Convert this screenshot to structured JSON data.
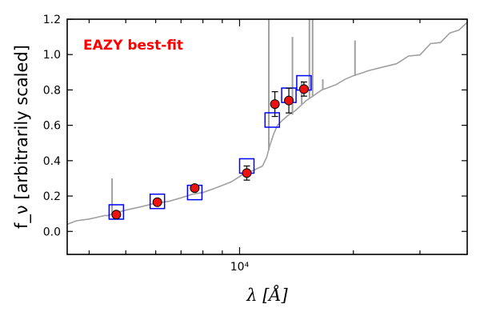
{
  "chart_data": {
    "type": "scatter",
    "annotation": "EAZY best-fit",
    "annotation_color": "#ff0000",
    "xlabel": "λ [Å]",
    "ylabel": "f_ν [arbitrarily scaled]",
    "x_scale": "log",
    "xlim": [
      3500,
      40000
    ],
    "ylim": [
      -0.13,
      1.2
    ],
    "x_tick_labels": [
      {
        "value": 10000,
        "label": "10⁴"
      }
    ],
    "y_ticks": [
      0.0,
      0.2,
      0.4,
      0.6,
      0.8,
      1.0,
      1.2
    ],
    "y_tick_labels": [
      "0.0",
      "0.2",
      "0.4",
      "0.6",
      "0.8",
      "1.0",
      "1.2"
    ],
    "grid": false,
    "colors": {
      "template": "#a0a0a0",
      "model_box": "#0000ff",
      "observed_fill": "#ee1111",
      "observed_edge": "#000000"
    },
    "template_spectrum": {
      "name": "EAZY best-fit",
      "x": [
        3500,
        3700,
        4000,
        4200,
        4400,
        4500,
        4600,
        4800,
        5000,
        5500,
        6000,
        6500,
        7000,
        7500,
        8000,
        8500,
        9000,
        9500,
        10000,
        10300,
        10500,
        11000,
        11500,
        11800,
        12000,
        12300,
        12600,
        13000,
        13500,
        14000,
        14500,
        15000,
        15500,
        16000,
        16500,
        17000,
        18000,
        19000,
        20000,
        22000,
        24000,
        26000,
        28000,
        30000,
        32000,
        34000,
        36000,
        38000,
        40000
      ],
      "y": [
        0.04,
        0.06,
        0.07,
        0.08,
        0.09,
        0.09,
        0.1,
        0.11,
        0.12,
        0.14,
        0.16,
        0.17,
        0.19,
        0.21,
        0.22,
        0.24,
        0.26,
        0.28,
        0.31,
        0.33,
        0.33,
        0.35,
        0.37,
        0.42,
        0.48,
        0.55,
        0.6,
        0.63,
        0.66,
        0.68,
        0.71,
        0.74,
        0.76,
        0.78,
        0.8,
        0.81,
        0.83,
        0.86,
        0.88,
        0.91,
        0.93,
        0.96,
        0.98,
        1.01,
        1.05,
        1.08,
        1.11,
        1.15,
        1.17
      ]
    },
    "spectral_lines": [
      {
        "x": 4600,
        "base": 0.1,
        "peak": 0.3
      },
      {
        "x": 11950,
        "base": 0.46,
        "peak": 1.2
      },
      {
        "x": 13800,
        "base": 0.66,
        "peak": 1.1
      },
      {
        "x": 14600,
        "base": 0.72,
        "peak": 0.85
      },
      {
        "x": 15300,
        "base": 0.75,
        "peak": 1.2
      },
      {
        "x": 15600,
        "base": 0.76,
        "peak": 1.2
      },
      {
        "x": 16600,
        "base": 0.8,
        "peak": 0.86
      },
      {
        "x": 20200,
        "base": 0.88,
        "peak": 1.08
      }
    ],
    "model_photometry": [
      {
        "x": 4720,
        "y": 0.11
      },
      {
        "x": 6060,
        "y": 0.17
      },
      {
        "x": 7610,
        "y": 0.22
      },
      {
        "x": 10450,
        "y": 0.37
      },
      {
        "x": 12200,
        "y": 0.63
      },
      {
        "x": 13500,
        "y": 0.77
      },
      {
        "x": 14800,
        "y": 0.84
      }
    ],
    "observed_photometry": [
      {
        "x": 4720,
        "y": 0.095,
        "err": 0.0
      },
      {
        "x": 6060,
        "y": 0.165,
        "err": 0.0
      },
      {
        "x": 7610,
        "y": 0.245,
        "err": 0.0
      },
      {
        "x": 10450,
        "y": 0.33,
        "err": 0.04
      },
      {
        "x": 12400,
        "y": 0.72,
        "err": 0.07
      },
      {
        "x": 13500,
        "y": 0.74,
        "err": 0.07
      },
      {
        "x": 14800,
        "y": 0.805,
        "err": 0.04
      }
    ]
  }
}
